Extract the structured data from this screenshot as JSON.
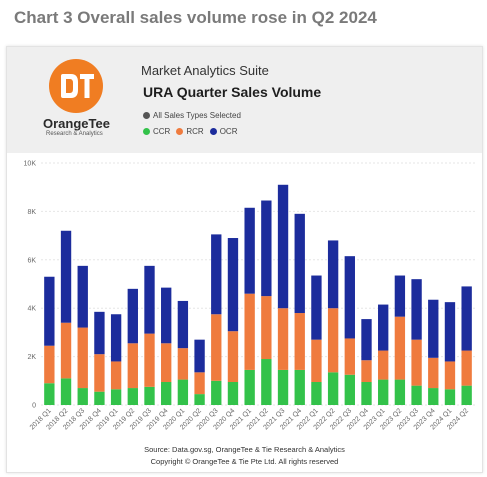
{
  "outer_title": "Chart 3 Overall sales volume rose in Q2 2024",
  "header": {
    "logo_name": "OrangeTee",
    "logo_sub": "Research & Analytics",
    "suite": "Market Analytics Suite",
    "title": "URA Quarter Sales Volume",
    "filter": "All Sales Types Selected"
  },
  "colors": {
    "ccr": "#33c24a",
    "rcr": "#ef7b3e",
    "ocr": "#1c2c9c",
    "logo": "#f07d22",
    "filter_dot": "#555555"
  },
  "footer": {
    "source": "Source: Data.gov.sg, OrangeTee & Tie Research & Analytics",
    "copyright": "Copyright © OrangeTee & Tie Pte Ltd. All rights reserved"
  },
  "chart_data": {
    "type": "bar",
    "stacked": true,
    "categories": [
      "2018 Q1",
      "2018 Q2",
      "2018 Q3",
      "2018 Q4",
      "2019 Q1",
      "2019 Q2",
      "2019 Q3",
      "2019 Q4",
      "2020 Q1",
      "2020 Q2",
      "2020 Q3",
      "2020 Q4",
      "2021 Q1",
      "2021 Q2",
      "2021 Q3",
      "2021 Q4",
      "2022 Q1",
      "2022 Q2",
      "2022 Q3",
      "2022 Q4",
      "2023 Q1",
      "2023 Q2",
      "2023 Q3",
      "2023 Q4",
      "2024 Q1",
      "2024 Q2"
    ],
    "series": [
      {
        "name": "CCR",
        "color": "#33c24a",
        "values": [
          900,
          1100,
          700,
          550,
          650,
          700,
          750,
          950,
          1050,
          450,
          1000,
          950,
          1450,
          1900,
          1450,
          1450,
          950,
          1350,
          1250,
          950,
          1050,
          1050,
          800,
          700,
          650,
          800
        ]
      },
      {
        "name": "RCR",
        "color": "#ef7b3e",
        "values": [
          1550,
          2300,
          2500,
          1550,
          1150,
          1850,
          2200,
          1600,
          1300,
          900,
          2750,
          2100,
          3150,
          2600,
          2550,
          2350,
          1750,
          2650,
          1500,
          900,
          1200,
          2600,
          1900,
          1250,
          1150,
          1450
        ]
      },
      {
        "name": "OCR",
        "color": "#1c2c9c",
        "values": [
          2850,
          3800,
          2550,
          1750,
          1950,
          2250,
          2800,
          2300,
          1950,
          1350,
          3300,
          3850,
          3550,
          3950,
          5100,
          4100,
          2650,
          2800,
          3400,
          1700,
          1900,
          1700,
          2500,
          2400,
          2450,
          2650
        ]
      }
    ],
    "ylim": [
      0,
      10000
    ],
    "yticks": [
      "0",
      "2K",
      "4K",
      "6K",
      "8K",
      "10K"
    ],
    "ytick_values": [
      0,
      2000,
      4000,
      6000,
      8000,
      10000
    ],
    "grid": true,
    "legend": "top-left"
  }
}
